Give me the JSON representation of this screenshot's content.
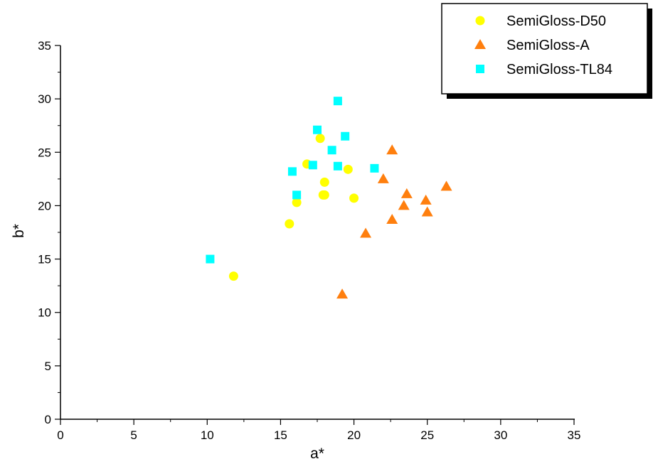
{
  "chart_data": {
    "type": "scatter",
    "xlabel": "a*",
    "ylabel": "b*",
    "xlim": [
      0,
      35
    ],
    "ylim": [
      0,
      35
    ],
    "x_ticks": [
      0,
      5,
      10,
      15,
      20,
      25,
      30,
      35
    ],
    "y_ticks": [
      0,
      5,
      10,
      15,
      20,
      25,
      30,
      35
    ],
    "grid": false,
    "legend_position": "top-right",
    "series": [
      {
        "name": "SemiGloss-D50",
        "marker": "circle",
        "color": "#FFFF00",
        "points": [
          [
            11.8,
            13.4
          ],
          [
            15.6,
            18.3
          ],
          [
            16.1,
            20.3
          ],
          [
            16.8,
            23.9
          ],
          [
            17.7,
            26.3
          ],
          [
            17.9,
            21.0
          ],
          [
            18.0,
            21.0
          ],
          [
            18.0,
            22.2
          ],
          [
            19.6,
            23.4
          ],
          [
            20.0,
            20.7
          ]
        ]
      },
      {
        "name": "SemiGloss-A",
        "marker": "triangle",
        "color": "#FF7F0E",
        "points": [
          [
            19.2,
            11.7
          ],
          [
            20.8,
            17.4
          ],
          [
            22.0,
            22.5
          ],
          [
            22.6,
            25.2
          ],
          [
            22.6,
            18.7
          ],
          [
            23.4,
            20.0
          ],
          [
            23.6,
            21.1
          ],
          [
            24.9,
            20.5
          ],
          [
            25.0,
            19.4
          ],
          [
            26.3,
            21.8
          ]
        ]
      },
      {
        "name": "SemiGloss-TL84",
        "marker": "square",
        "color": "#00FFFF",
        "points": [
          [
            10.2,
            15.0
          ],
          [
            15.8,
            23.2
          ],
          [
            16.1,
            21.0
          ],
          [
            17.2,
            23.8
          ],
          [
            17.5,
            27.1
          ],
          [
            18.5,
            25.2
          ],
          [
            18.9,
            29.8
          ],
          [
            18.9,
            23.7
          ],
          [
            19.4,
            26.5
          ],
          [
            21.4,
            23.5
          ]
        ]
      }
    ]
  }
}
